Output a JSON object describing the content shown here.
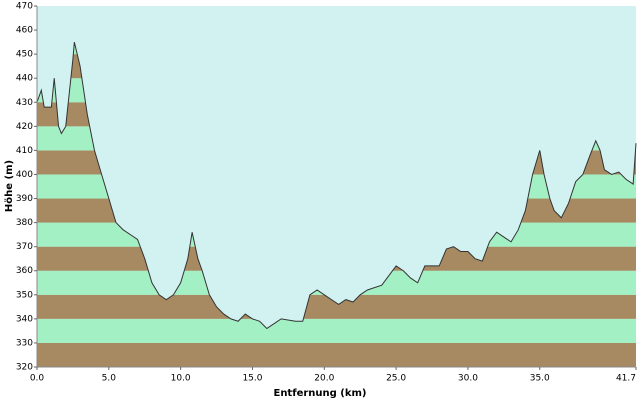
{
  "chart_data": {
    "type": "area",
    "x_label": "Entfernung  (km)",
    "y_label": "Höhe (m)",
    "x": [
      0,
      0.3,
      0.5,
      1.0,
      1.2,
      1.5,
      1.7,
      2.0,
      2.5,
      2.6,
      3.0,
      3.5,
      4.0,
      4.5,
      5.0,
      5.5,
      6.0,
      6.5,
      7.0,
      7.5,
      8.0,
      8.5,
      9.0,
      9.5,
      10.0,
      10.5,
      10.8,
      11.2,
      11.5,
      12.0,
      12.5,
      13.0,
      13.5,
      14.0,
      14.5,
      15.0,
      15.5,
      16.0,
      16.5,
      17.0,
      18.0,
      18.5,
      19.0,
      19.5,
      20.0,
      20.5,
      21.0,
      21.5,
      22.0,
      22.5,
      23.0,
      24.0,
      24.5,
      25.0,
      25.5,
      26.0,
      26.5,
      27.0,
      28.0,
      28.5,
      29.0,
      29.5,
      30.0,
      30.5,
      31.0,
      31.5,
      32.0,
      32.5,
      33.0,
      33.5,
      34.0,
      34.5,
      35.0,
      35.3,
      35.7,
      36.0,
      36.5,
      37.0,
      37.5,
      38.0,
      38.5,
      38.9,
      39.2,
      39.5,
      40.0,
      40.5,
      41.0,
      41.5,
      41.7
    ],
    "values": [
      430,
      435,
      428,
      428,
      440,
      420,
      417,
      420,
      448,
      455,
      445,
      425,
      410,
      400,
      390,
      380,
      377,
      375,
      373,
      365,
      355,
      350,
      348,
      350,
      355,
      365,
      376,
      365,
      360,
      350,
      345,
      342,
      340,
      339,
      342,
      340,
      339,
      336,
      338,
      340,
      339,
      339,
      350,
      352,
      350,
      348,
      346,
      348,
      347,
      350,
      352,
      354,
      358,
      362,
      360,
      357,
      355,
      362,
      362,
      369,
      370,
      368,
      368,
      365,
      364,
      372,
      376,
      374,
      372,
      377,
      385,
      400,
      410,
      400,
      390,
      385,
      382,
      388,
      397,
      400,
      408,
      414,
      410,
      402,
      400,
      401,
      398,
      396,
      413
    ],
    "line_color": "#333333",
    "background": "#d2f2f2",
    "band_colors": [
      "#a88a62",
      "#a2f0c4"
    ],
    "xlim": [
      0,
      41.7
    ],
    "ylim": [
      320,
      470
    ],
    "xticks": [
      {
        "value": 0,
        "label": "0.0"
      },
      {
        "value": 5,
        "label": "5.0"
      },
      {
        "value": 10,
        "label": "10.0"
      },
      {
        "value": 15,
        "label": "15.0"
      },
      {
        "value": 20,
        "label": "20.0"
      },
      {
        "value": 25,
        "label": "25.0"
      },
      {
        "value": 30,
        "label": "30.0"
      },
      {
        "value": 35,
        "label": "35.0"
      },
      {
        "value": 41.7,
        "label": "41.7"
      }
    ],
    "yticks": [
      320,
      330,
      340,
      350,
      360,
      370,
      380,
      390,
      400,
      410,
      420,
      430,
      440,
      450,
      460,
      470
    ]
  }
}
